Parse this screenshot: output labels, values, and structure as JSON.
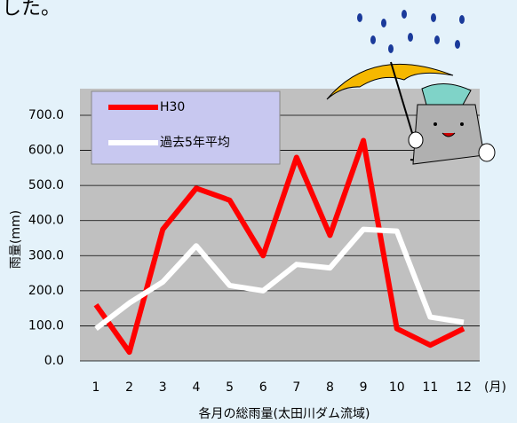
{
  "intro_text": "した。",
  "chart_data": {
    "type": "line",
    "x_label": "各月の総雨量(太田川ダム流域)",
    "y_label": "雨量(mm)",
    "x_unit": "(月)",
    "categories": [
      "1",
      "2",
      "3",
      "4",
      "5",
      "6",
      "7",
      "8",
      "9",
      "10",
      "11",
      "12"
    ],
    "series": [
      {
        "name": "H30",
        "color": "#ff0000",
        "values": [
          160,
          25,
          375,
          492,
          458,
          300,
          580,
          358,
          628,
          92,
          45,
          92
        ]
      },
      {
        "name": "過去5年平均",
        "color": "#ffffff",
        "values": [
          92,
          165,
          225,
          328,
          215,
          200,
          275,
          265,
          375,
          370,
          125,
          110
        ]
      }
    ],
    "ylim": [
      0,
      700
    ],
    "yticks": [
      {
        "value": 0,
        "label": "0.0"
      },
      {
        "value": 100,
        "label": "100.0"
      },
      {
        "value": 200,
        "label": "200.0"
      },
      {
        "value": 300,
        "label": "300.0"
      },
      {
        "value": 400,
        "label": "400.0"
      },
      {
        "value": 500,
        "label": "500.0"
      },
      {
        "value": 600,
        "label": "600.0"
      },
      {
        "value": 700,
        "label": "700.0"
      }
    ],
    "grid": true
  }
}
